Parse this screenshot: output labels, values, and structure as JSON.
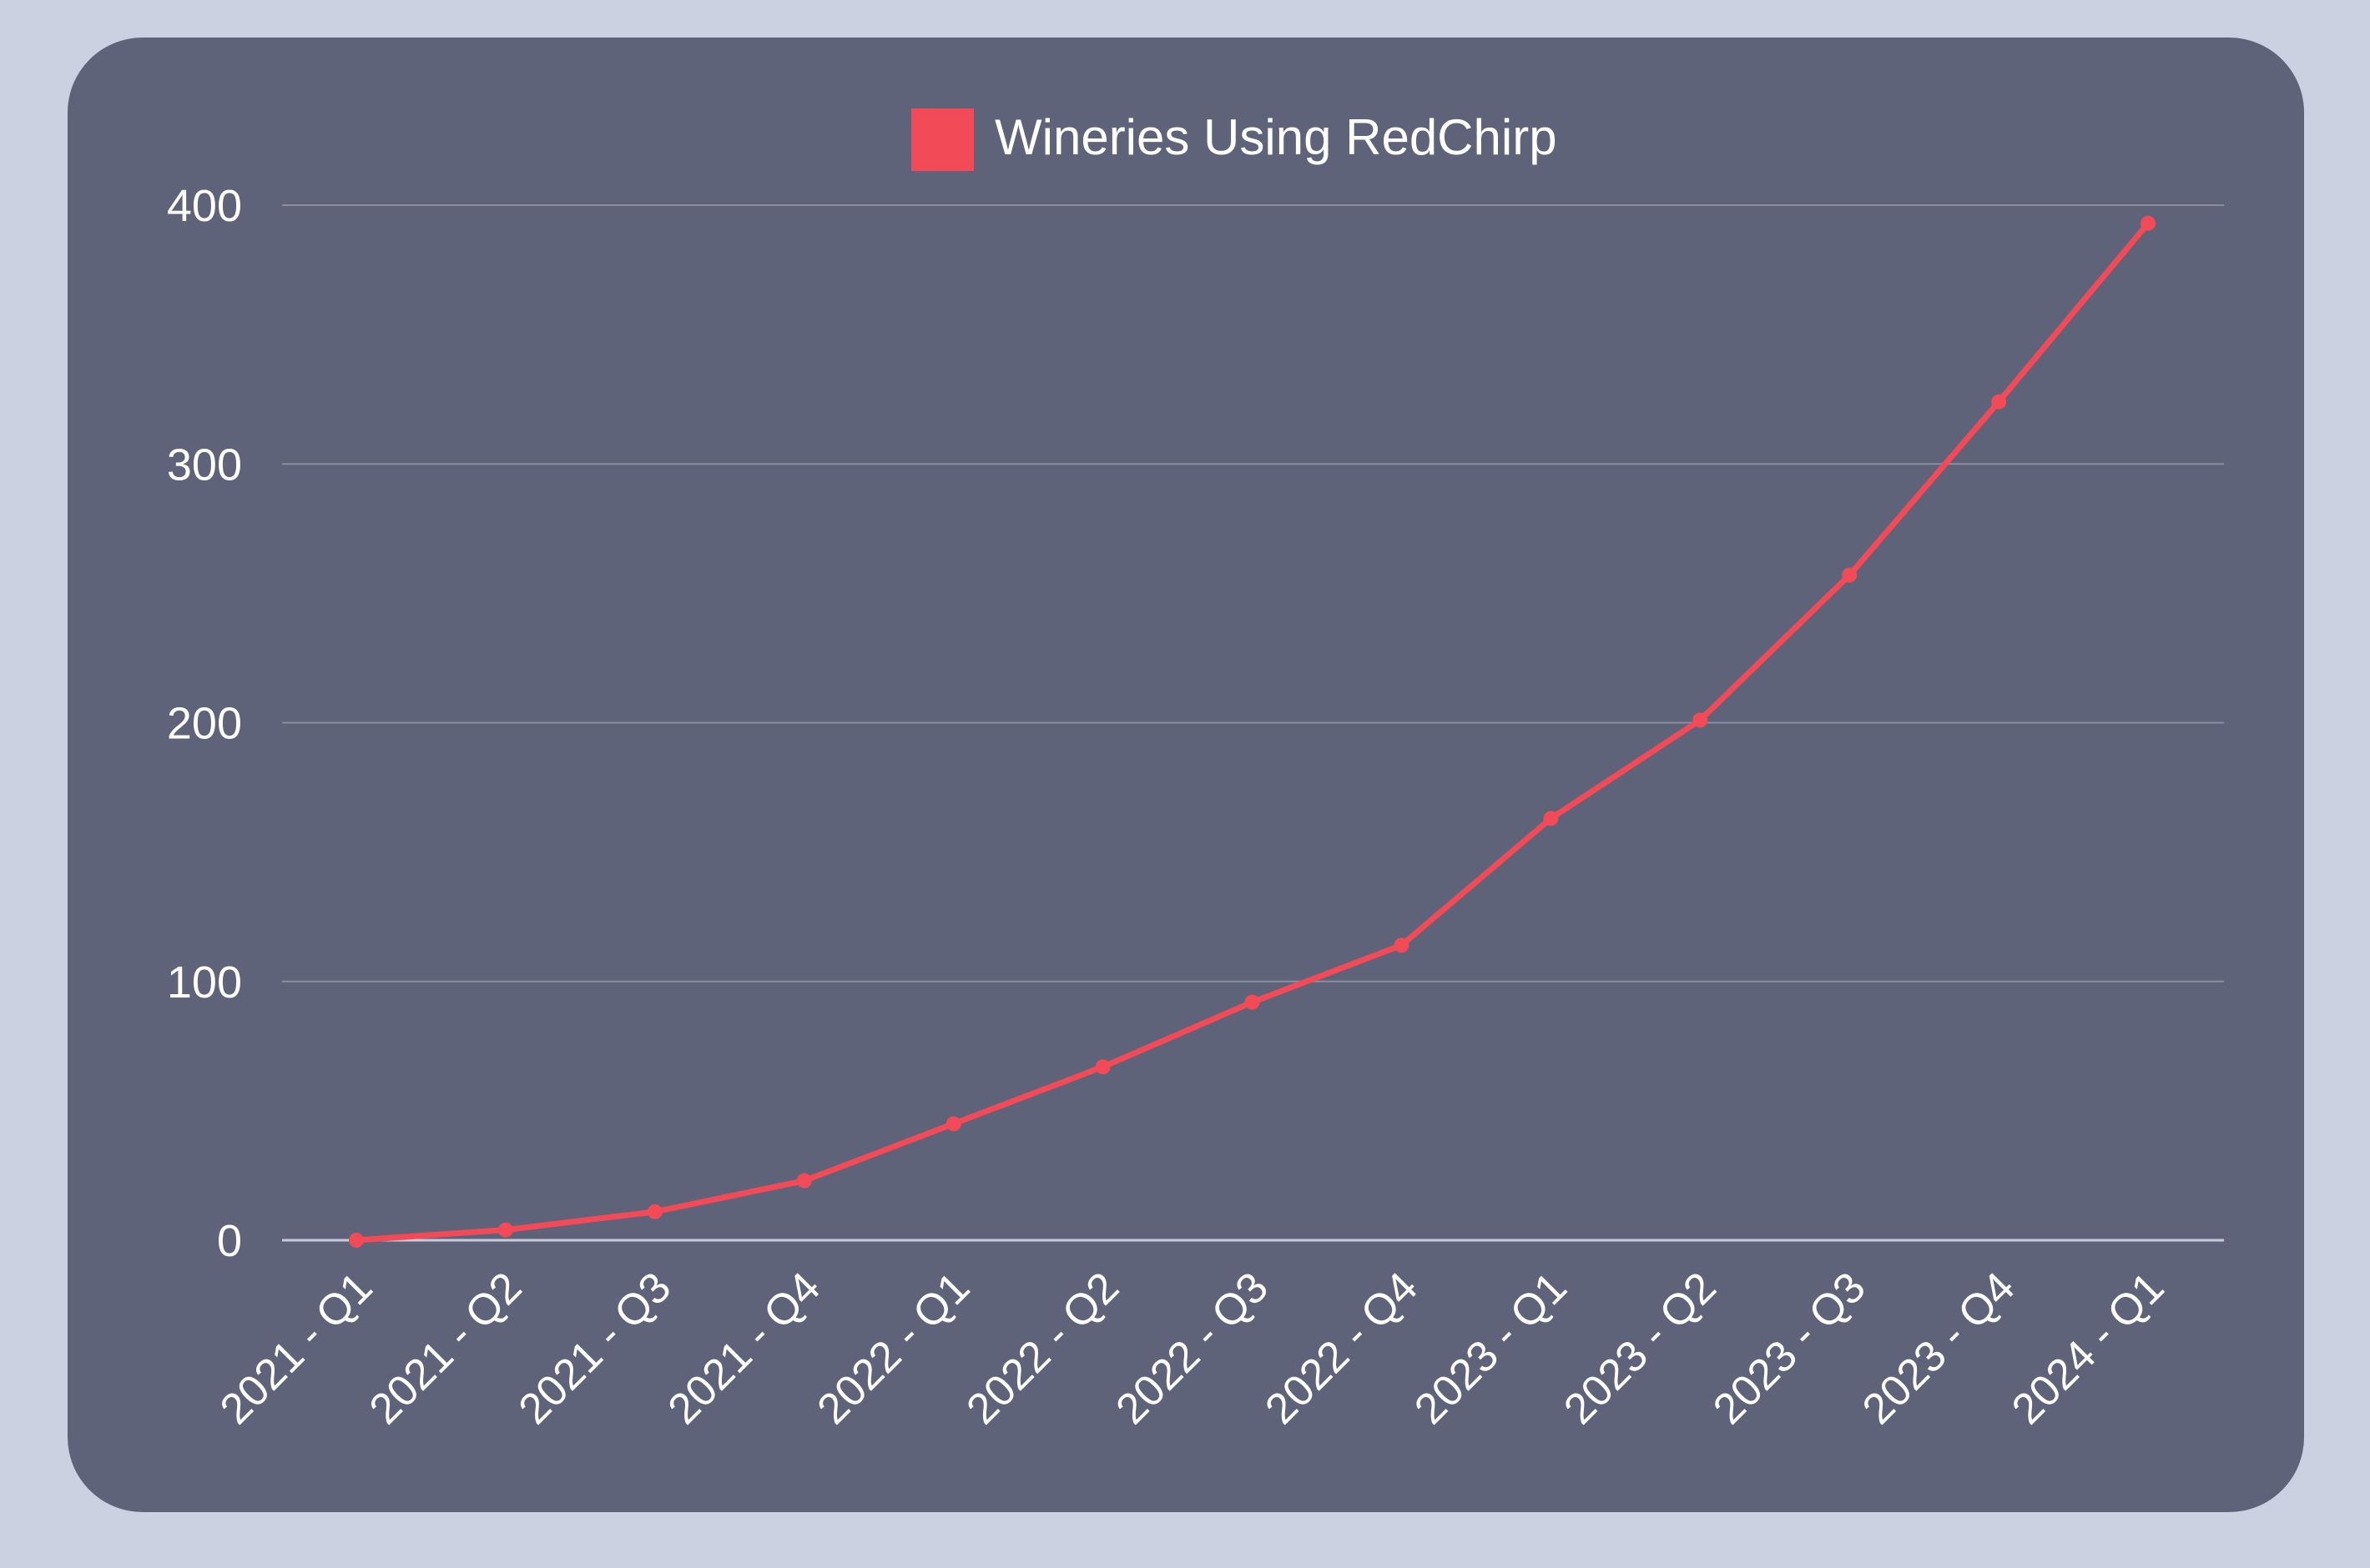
{
  "chart_data": {
    "type": "line",
    "title": "",
    "xlabel": "",
    "ylabel": "",
    "categories": [
      "2021 - Q1",
      "2021 - Q2",
      "2021 - Q3",
      "2021 - Q4",
      "2022 - Q1",
      "2022 - Q2",
      "2022 - Q3",
      "2022 - Q4",
      "2023 - Q1",
      "2023 - Q2",
      "2023 - Q3",
      "2023 - Q4",
      "2024 - Q1"
    ],
    "series": [
      {
        "name": "Wineries Using RedChirp",
        "color": "#f24a57",
        "values": [
          0,
          4,
          11,
          23,
          45,
          67,
          92,
          114,
          163,
          201,
          257,
          324,
          393
        ]
      }
    ],
    "yticks": [
      "0",
      "100",
      "200",
      "300",
      "400"
    ],
    "ylim": [
      0,
      400
    ],
    "grid": true,
    "legend": "top-center"
  }
}
